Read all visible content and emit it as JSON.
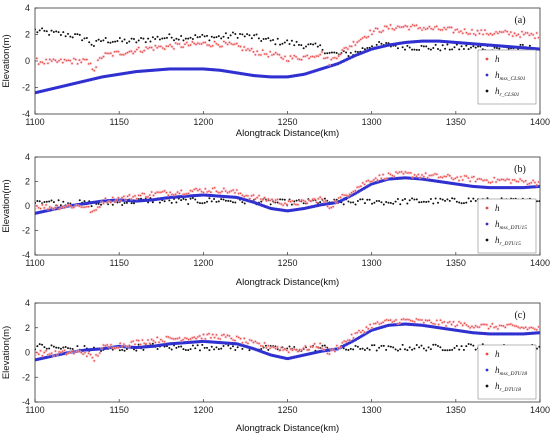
{
  "figure": {
    "xlabel": "Alongtrack Distance(km)",
    "ylabel": "Elevation(m)"
  },
  "chart_data": [
    {
      "type": "scatter",
      "panel_label": "(a)",
      "xlabel": "Alongtrack Distance(km)",
      "ylabel": "Elevation(m)",
      "xlim": [
        1100,
        1400
      ],
      "ylim": [
        -4,
        4
      ],
      "xticks": [
        1100,
        1150,
        1200,
        1250,
        1300,
        1350,
        1400
      ],
      "yticks": [
        -4,
        -2,
        0,
        2,
        4
      ],
      "legend_placement": "right",
      "series": [
        {
          "name": "h",
          "sub": "",
          "color": "#e74c3c",
          "x": [
            1100,
            1110,
            1120,
            1130,
            1135,
            1140,
            1150,
            1160,
            1170,
            1180,
            1190,
            1200,
            1210,
            1220,
            1230,
            1240,
            1250,
            1260,
            1270,
            1275,
            1280,
            1290,
            1300,
            1310,
            1320,
            1330,
            1340,
            1350,
            1360,
            1370,
            1380,
            1390,
            1400
          ],
          "y": [
            0.0,
            -0.1,
            0.0,
            0.0,
            -0.6,
            0.4,
            0.6,
            0.8,
            1.0,
            1.1,
            1.2,
            1.3,
            1.3,
            1.1,
            0.7,
            0.5,
            0.2,
            0.3,
            0.6,
            -0.1,
            0.5,
            1.4,
            2.2,
            2.5,
            2.6,
            2.5,
            2.4,
            2.3,
            2.2,
            2.1,
            2.1,
            2.0,
            1.9
          ]
        },
        {
          "name": "h",
          "sub": "mss_CLS01",
          "color": "#3030d0",
          "x": [
            1100,
            1110,
            1120,
            1130,
            1140,
            1150,
            1160,
            1170,
            1180,
            1190,
            1200,
            1210,
            1220,
            1230,
            1240,
            1250,
            1260,
            1270,
            1280,
            1290,
            1300,
            1310,
            1320,
            1330,
            1340,
            1350,
            1360,
            1370,
            1380,
            1390,
            1400
          ],
          "y": [
            -2.4,
            -2.1,
            -1.8,
            -1.5,
            -1.2,
            -1.0,
            -0.8,
            -0.7,
            -0.6,
            -0.6,
            -0.6,
            -0.7,
            -0.9,
            -1.1,
            -1.2,
            -1.2,
            -1.0,
            -0.6,
            -0.2,
            0.4,
            0.9,
            1.2,
            1.4,
            1.5,
            1.5,
            1.4,
            1.3,
            1.2,
            1.1,
            1.0,
            0.9
          ]
        },
        {
          "name": "h",
          "sub": "r_CLS01",
          "color": "#111111",
          "x": [
            1100,
            1110,
            1120,
            1130,
            1135,
            1140,
            1150,
            1160,
            1170,
            1180,
            1190,
            1200,
            1210,
            1220,
            1230,
            1240,
            1250,
            1260,
            1270,
            1275,
            1280,
            1290,
            1300,
            1310,
            1320,
            1330,
            1340,
            1350,
            1360,
            1370,
            1380,
            1390,
            1400
          ],
          "y": [
            2.3,
            2.1,
            2.0,
            1.7,
            1.2,
            1.6,
            1.5,
            1.5,
            1.7,
            1.8,
            1.8,
            1.8,
            1.8,
            2.0,
            1.8,
            1.5,
            1.4,
            1.2,
            1.0,
            0.6,
            0.5,
            0.6,
            1.2,
            1.2,
            1.1,
            1.0,
            1.0,
            1.0,
            1.0,
            1.0,
            1.0,
            1.0,
            0.9
          ]
        }
      ]
    },
    {
      "type": "scatter",
      "panel_label": "(b)",
      "xlabel": "Alongtrack Distance(km)",
      "ylabel": "Elevation(m)",
      "xlim": [
        1100,
        1400
      ],
      "ylim": [
        -4,
        4
      ],
      "xticks": [
        1100,
        1150,
        1200,
        1250,
        1300,
        1350,
        1400
      ],
      "yticks": [
        -4,
        -2,
        0,
        2,
        4
      ],
      "legend_placement": "right",
      "series": [
        {
          "name": "h",
          "sub": "",
          "color": "#e74c3c",
          "x": [
            1100,
            1110,
            1120,
            1130,
            1135,
            1140,
            1150,
            1160,
            1170,
            1180,
            1190,
            1200,
            1210,
            1220,
            1230,
            1240,
            1250,
            1260,
            1270,
            1275,
            1280,
            1290,
            1300,
            1310,
            1320,
            1330,
            1340,
            1350,
            1360,
            1370,
            1380,
            1390,
            1400
          ],
          "y": [
            0.0,
            -0.1,
            0.0,
            0.0,
            -0.6,
            0.4,
            0.6,
            0.8,
            1.0,
            1.1,
            1.2,
            1.3,
            1.3,
            1.1,
            0.7,
            0.5,
            0.2,
            0.3,
            0.6,
            -0.1,
            0.5,
            1.4,
            2.2,
            2.5,
            2.6,
            2.5,
            2.4,
            2.3,
            2.2,
            2.1,
            2.1,
            2.0,
            1.9
          ]
        },
        {
          "name": "h",
          "sub": "mss_DTU15",
          "color": "#3030d0",
          "x": [
            1100,
            1110,
            1120,
            1130,
            1140,
            1150,
            1160,
            1170,
            1180,
            1190,
            1200,
            1210,
            1220,
            1230,
            1240,
            1250,
            1260,
            1270,
            1280,
            1290,
            1300,
            1310,
            1320,
            1330,
            1340,
            1350,
            1360,
            1370,
            1380,
            1390,
            1400
          ],
          "y": [
            -0.6,
            -0.3,
            0.0,
            0.2,
            0.4,
            0.5,
            0.4,
            0.5,
            0.7,
            0.8,
            0.9,
            0.8,
            0.7,
            0.3,
            -0.2,
            -0.4,
            -0.2,
            0.1,
            0.3,
            1.0,
            1.8,
            2.2,
            2.3,
            2.2,
            2.0,
            1.8,
            1.6,
            1.5,
            1.5,
            1.5,
            1.6
          ]
        },
        {
          "name": "h",
          "sub": "r_DTU15",
          "color": "#111111",
          "x": [
            1100,
            1110,
            1120,
            1130,
            1140,
            1150,
            1160,
            1170,
            1180,
            1190,
            1200,
            1210,
            1220,
            1230,
            1240,
            1250,
            1260,
            1270,
            1280,
            1290,
            1300,
            1310,
            1320,
            1330,
            1340,
            1350,
            1360,
            1370,
            1380,
            1390,
            1400
          ],
          "y": [
            0.5,
            0.3,
            0.3,
            0.2,
            0.2,
            0.3,
            0.4,
            0.5,
            0.4,
            0.4,
            0.4,
            0.5,
            0.4,
            0.4,
            0.3,
            0.3,
            0.3,
            0.4,
            0.3,
            0.3,
            0.4,
            0.3,
            0.4,
            0.4,
            0.4,
            0.4,
            0.5,
            0.4,
            0.4,
            0.4,
            0.4
          ]
        }
      ]
    },
    {
      "type": "scatter",
      "panel_label": "(c)",
      "xlabel": "Alongtrack Distance(km)",
      "ylabel": "Elevation(m)",
      "xlim": [
        1100,
        1400
      ],
      "ylim": [
        -4,
        4
      ],
      "xticks": [
        1100,
        1150,
        1200,
        1250,
        1300,
        1350,
        1400
      ],
      "yticks": [
        -4,
        -2,
        0,
        2,
        4
      ],
      "legend_placement": "right",
      "series": [
        {
          "name": "h",
          "sub": "",
          "color": "#e74c3c",
          "x": [
            1100,
            1110,
            1120,
            1130,
            1135,
            1140,
            1150,
            1160,
            1170,
            1180,
            1190,
            1200,
            1210,
            1220,
            1230,
            1240,
            1250,
            1260,
            1270,
            1275,
            1280,
            1290,
            1300,
            1310,
            1320,
            1330,
            1340,
            1350,
            1360,
            1370,
            1380,
            1390,
            1400
          ],
          "y": [
            0.0,
            -0.1,
            0.0,
            0.0,
            -0.6,
            0.4,
            0.6,
            0.8,
            1.0,
            1.1,
            1.2,
            1.3,
            1.3,
            1.1,
            0.7,
            0.5,
            0.2,
            0.3,
            0.6,
            -0.1,
            0.5,
            1.4,
            2.2,
            2.5,
            2.6,
            2.5,
            2.4,
            2.3,
            2.2,
            2.1,
            2.1,
            2.0,
            1.9
          ]
        },
        {
          "name": "h",
          "sub": "mss_DTU18",
          "color": "#3030d0",
          "x": [
            1100,
            1110,
            1120,
            1130,
            1140,
            1150,
            1160,
            1170,
            1180,
            1190,
            1200,
            1210,
            1220,
            1230,
            1240,
            1250,
            1260,
            1270,
            1280,
            1290,
            1300,
            1310,
            1320,
            1330,
            1340,
            1350,
            1360,
            1370,
            1380,
            1390,
            1400
          ],
          "y": [
            -0.6,
            -0.3,
            0.0,
            0.2,
            0.3,
            0.5,
            0.4,
            0.5,
            0.7,
            0.8,
            0.9,
            0.8,
            0.7,
            0.3,
            -0.2,
            -0.5,
            -0.2,
            0.1,
            0.3,
            1.0,
            1.8,
            2.2,
            2.3,
            2.2,
            2.0,
            1.8,
            1.6,
            1.5,
            1.5,
            1.5,
            1.6
          ]
        },
        {
          "name": "h",
          "sub": "r_DTU18",
          "color": "#111111",
          "x": [
            1100,
            1110,
            1120,
            1130,
            1140,
            1150,
            1160,
            1170,
            1180,
            1190,
            1200,
            1210,
            1220,
            1230,
            1240,
            1250,
            1260,
            1270,
            1280,
            1290,
            1300,
            1310,
            1320,
            1330,
            1340,
            1350,
            1360,
            1370,
            1380,
            1390,
            1400
          ],
          "y": [
            0.5,
            0.4,
            0.3,
            0.3,
            0.2,
            0.3,
            0.4,
            0.5,
            0.4,
            0.4,
            0.4,
            0.5,
            0.4,
            0.4,
            0.3,
            0.3,
            0.3,
            0.4,
            0.3,
            0.3,
            0.4,
            0.3,
            0.4,
            0.4,
            0.4,
            0.4,
            0.5,
            0.4,
            0.4,
            0.4,
            0.4
          ]
        }
      ]
    }
  ]
}
